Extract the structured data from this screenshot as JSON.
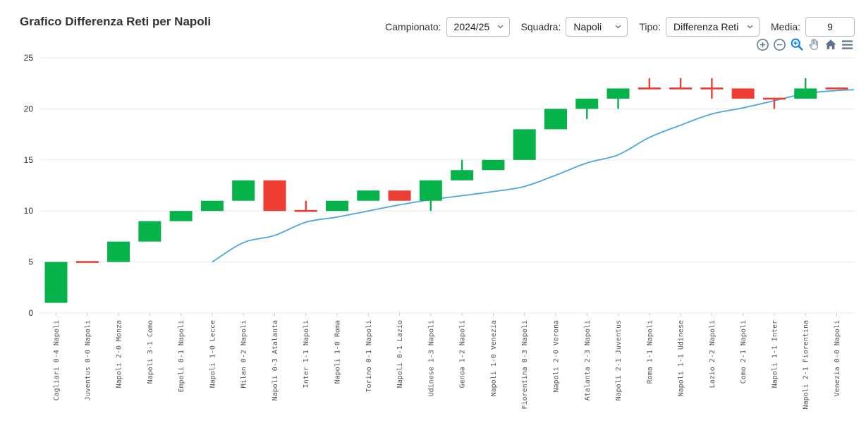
{
  "header": {
    "title": "Grafico Differenza Reti per Napoli"
  },
  "controls": {
    "campionato": {
      "label": "Campionato:",
      "value": "2024/25"
    },
    "squadra": {
      "label": "Squadra:",
      "value": "Napoli"
    },
    "tipo": {
      "label": "Tipo:",
      "value": "Differenza Reti"
    },
    "media": {
      "label": "Media:",
      "value": "9"
    }
  },
  "toolbar": {
    "icons": [
      "zoom-in",
      "zoom-out",
      "box-zoom",
      "pan",
      "home",
      "menu"
    ],
    "active_icon": "box-zoom",
    "icon_color": "#5c7288",
    "pan_color": "#8aa0b0",
    "active_color": "#1884e8"
  },
  "chart_data": {
    "type": "candlestick",
    "title": "Grafico Differenza Reti per Napoli",
    "xlabel": "",
    "ylabel": "",
    "ylim": [
      0,
      25
    ],
    "yticks": [
      0,
      5,
      10,
      15,
      20,
      25
    ],
    "grid": true,
    "legend": "none",
    "x_labels": [
      "Cagliari 0-4 Napoli",
      "Juventus 0-0 Napoli",
      "Napoli 2-0 Monza",
      "Napoli 3-1 Como",
      "Empoli 0-1 Napoli",
      "Napoli 1-0 Lecce",
      "Milan 0-2 Napoli",
      "Napoli 0-3 Atalanta",
      "Inter 1-1 Napoli",
      "Napoli 1-0 Roma",
      "Torino 0-1 Napoli",
      "Napoli 0-1 Lazio",
      "Udinese 1-3 Napoli",
      "Genoa 1-2 Napoli",
      "Napoli 1-0 Venezia",
      "Fiorentina 0-3 Napoli",
      "Napoli 2-0 Verona",
      "Atalanta 2-3 Napoli",
      "Napoli 2-1 Juventus",
      "Roma 1-1 Napoli",
      "Napoli 1-1 Udinese",
      "Lazio 2-2 Napoli",
      "Como 2-1 Napoli",
      "Napoli 1-1 Inter",
      "Napoli 2-1 Fiorentina",
      "Venezia 0-0 Napoli"
    ],
    "series": [
      {
        "name": "Differenza Reti",
        "type": "candlestick",
        "ohlc": [
          {
            "open": 1,
            "high": 5,
            "low": 1,
            "close": 5
          },
          {
            "open": 5,
            "high": 5,
            "low": 5,
            "close": 5
          },
          {
            "open": 5,
            "high": 7,
            "low": 5,
            "close": 7
          },
          {
            "open": 7,
            "high": 9,
            "low": 7,
            "close": 9
          },
          {
            "open": 9,
            "high": 10,
            "low": 9,
            "close": 10
          },
          {
            "open": 10,
            "high": 11,
            "low": 10,
            "close": 11
          },
          {
            "open": 11,
            "high": 13,
            "low": 11,
            "close": 13
          },
          {
            "open": 13,
            "high": 13,
            "low": 10,
            "close": 10
          },
          {
            "open": 10,
            "high": 11,
            "low": 10,
            "close": 10
          },
          {
            "open": 10,
            "high": 11,
            "low": 10,
            "close": 11
          },
          {
            "open": 11,
            "high": 12,
            "low": 11,
            "close": 12
          },
          {
            "open": 12,
            "high": 12,
            "low": 11,
            "close": 11
          },
          {
            "open": 11,
            "high": 13,
            "low": 10,
            "close": 13
          },
          {
            "open": 13,
            "high": 15,
            "low": 13,
            "close": 14
          },
          {
            "open": 14,
            "high": 15,
            "low": 14,
            "close": 15
          },
          {
            "open": 15,
            "high": 18,
            "low": 15,
            "close": 18
          },
          {
            "open": 18,
            "high": 20,
            "low": 18,
            "close": 20
          },
          {
            "open": 20,
            "high": 21,
            "low": 19,
            "close": 21
          },
          {
            "open": 21,
            "high": 22,
            "low": 20,
            "close": 22
          },
          {
            "open": 22,
            "high": 23,
            "low": 22,
            "close": 22
          },
          {
            "open": 22,
            "high": 23,
            "low": 22,
            "close": 22
          },
          {
            "open": 22,
            "high": 23,
            "low": 21,
            "close": 22
          },
          {
            "open": 22,
            "high": 22,
            "low": 21,
            "close": 21
          },
          {
            "open": 21,
            "high": 21,
            "low": 20,
            "close": 21
          },
          {
            "open": 21,
            "high": 23,
            "low": 21,
            "close": 22
          },
          {
            "open": 22,
            "high": 22,
            "low": 22,
            "close": 22
          }
        ]
      },
      {
        "name": "Media",
        "type": "line",
        "values": [
          null,
          null,
          null,
          null,
          null,
          5.0,
          6.9,
          7.6,
          8.9,
          9.4,
          10.0,
          10.6,
          11.1,
          11.5,
          11.9,
          12.4,
          13.5,
          14.7,
          15.5,
          17.2,
          18.4,
          19.5,
          20.1,
          20.8,
          21.5,
          21.8
        ]
      }
    ],
    "colors": {
      "up": "#06b24a",
      "down": "#ee3d33",
      "media_line": "#4da6dc",
      "grid": "#eaeaea",
      "tick": "#cccccc",
      "y_label": "#333333",
      "x_label": "#555555"
    }
  }
}
